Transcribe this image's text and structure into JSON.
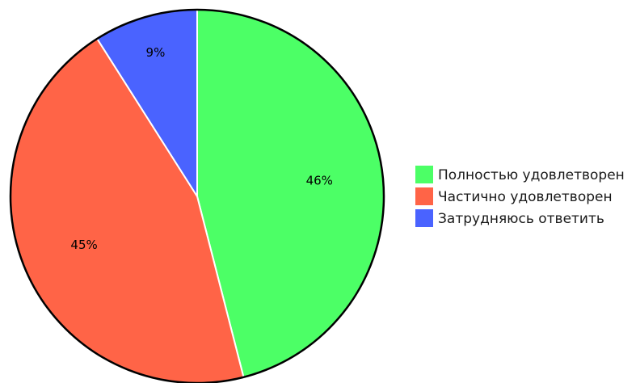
{
  "chart_data": {
    "type": "pie",
    "title": "",
    "legend_position": "right",
    "slices": [
      {
        "label": "Полностью удовлетворен",
        "value": 46,
        "display": "46%",
        "color": "#4cff66"
      },
      {
        "label": "Частично удовлетворен",
        "value": 45,
        "display": "45%",
        "color": "#ff6447"
      },
      {
        "label": "Затрудняюсь ответить",
        "value": 9,
        "display": "9%",
        "color": "#4a63ff"
      }
    ]
  }
}
